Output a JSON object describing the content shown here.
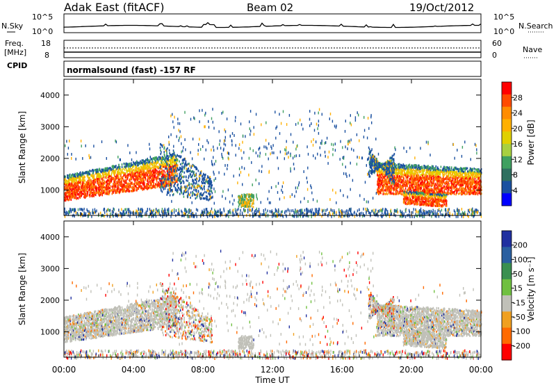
{
  "header": {
    "title": "Adak East (fitACF)",
    "beam": "Beam 02",
    "date": "19/Oct/2012"
  },
  "nsky_panel": {
    "left_label": "N.Sky",
    "right_label": "N.Search",
    "left_ticks": [
      "10^5",
      "10^0"
    ],
    "right_ticks": [
      "10^5",
      "10^0"
    ]
  },
  "freq_panel": {
    "left_label_line1": "Freq.",
    "left_label_line2": "[MHz]",
    "cpid_label": "CPID",
    "right_label": "Nave",
    "left_ticks": [
      "18",
      "8"
    ],
    "right_ticks": [
      "60",
      "0"
    ],
    "cpid_text": "normalsound (fast) -157 RF"
  },
  "chart_data": [
    {
      "type": "heatmap",
      "quantity": "Power",
      "ylabel": "Slant Range [km]",
      "ylim": [
        200,
        4500
      ],
      "yticks": [
        "1000",
        "2000",
        "3000",
        "4000"
      ],
      "x_range_hours": [
        0,
        24
      ],
      "colorbar": {
        "label": "Power [dB]",
        "ticks": [
          "28",
          "24",
          "20",
          "16",
          "12",
          "8",
          "4"
        ],
        "colors": [
          "#ff0000",
          "#ff4a00",
          "#ff8c00",
          "#ffb000",
          "#e0d000",
          "#a8d040",
          "#3fa060",
          "#2f7060",
          "#1a50a0",
          "#0000ff"
        ]
      }
    },
    {
      "type": "heatmap",
      "quantity": "Velocity",
      "ylabel": "Slant Range [km]",
      "ylim": [
        200,
        4500
      ],
      "yticks": [
        "1000",
        "2000",
        "3000",
        "4000"
      ],
      "x_range_hours": [
        0,
        24
      ],
      "colorbar": {
        "label": "Velocity [m s⁻¹]",
        "ticks": [
          "200",
          "100",
          "50",
          "15",
          "-15",
          "-50",
          "-100",
          "-200"
        ],
        "colors": [
          "#2030a0",
          "#2a5fa0",
          "#3a9050",
          "#70c040",
          "#c0c0b8",
          "#f0a020",
          "#ff6a00",
          "#ff0000"
        ]
      }
    }
  ],
  "x_axis": {
    "label": "Time UT",
    "ticks": [
      "00:00",
      "04:00",
      "08:00",
      "12:00",
      "16:00",
      "20:00",
      "00:00"
    ]
  }
}
